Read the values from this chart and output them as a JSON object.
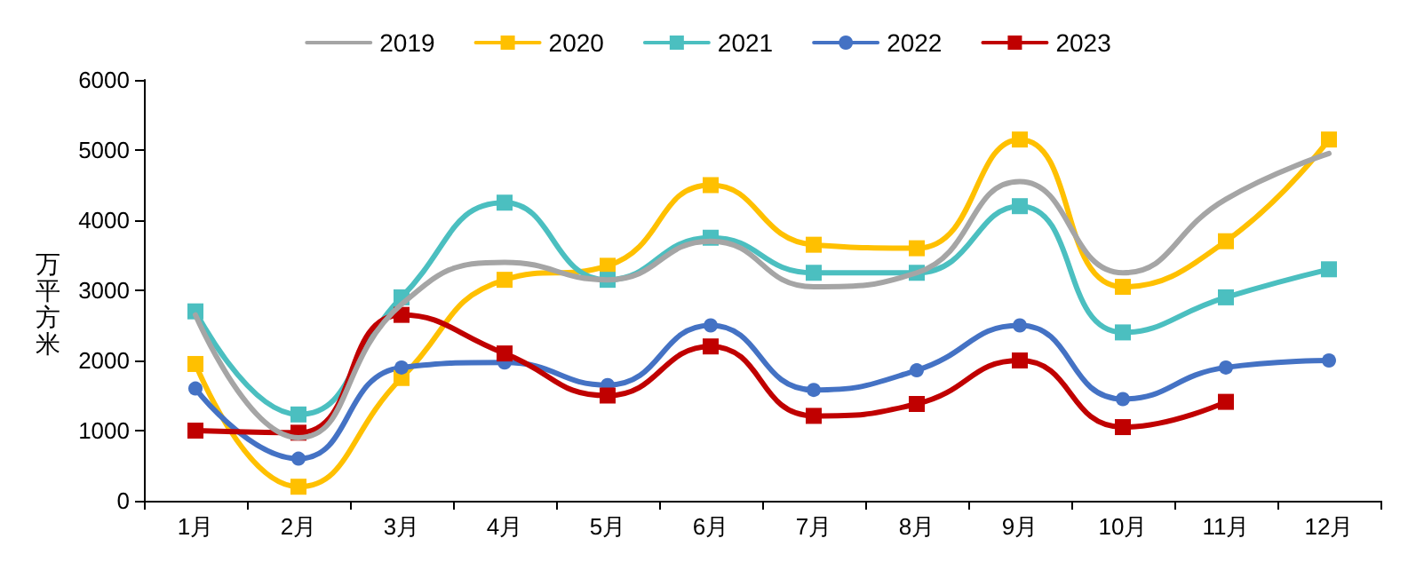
{
  "chart_data": {
    "type": "line",
    "ylabel": "万平方米",
    "categories": [
      "1月",
      "2月",
      "3月",
      "4月",
      "5月",
      "6月",
      "7月",
      "8月",
      "9月",
      "10月",
      "11月",
      "12月"
    ],
    "series": [
      {
        "name": "2019",
        "color": "#a5a5a5",
        "marker": "none",
        "values": [
          2650,
          900,
          2800,
          3400,
          3150,
          3700,
          3050,
          3250,
          4550,
          3250,
          4300,
          4950
        ]
      },
      {
        "name": "2020",
        "color": "#ffc000",
        "marker": "square",
        "values": [
          1950,
          200,
          1750,
          3150,
          3350,
          4500,
          3650,
          3600,
          5150,
          3050,
          3700,
          5150
        ]
      },
      {
        "name": "2021",
        "color": "#4bbfc0",
        "marker": "square",
        "values": [
          2700,
          1230,
          2900,
          4250,
          3150,
          3750,
          3250,
          3250,
          4200,
          2400,
          2900,
          3300
        ]
      },
      {
        "name": "2022",
        "color": "#4472c4",
        "marker": "circle",
        "values": [
          1600,
          600,
          1900,
          1970,
          1650,
          2500,
          1580,
          1860,
          2500,
          1450,
          1900,
          2000
        ]
      },
      {
        "name": "2023",
        "color": "#c00000",
        "marker": "square",
        "values": [
          1000,
          970,
          2650,
          2100,
          1500,
          2200,
          1210,
          1380,
          2000,
          1050,
          1410,
          null
        ]
      }
    ],
    "ylim": [
      0,
      6000
    ],
    "yticks": [
      0,
      1000,
      2000,
      3000,
      4000,
      5000,
      6000
    ],
    "grid": false,
    "legend": "top"
  }
}
